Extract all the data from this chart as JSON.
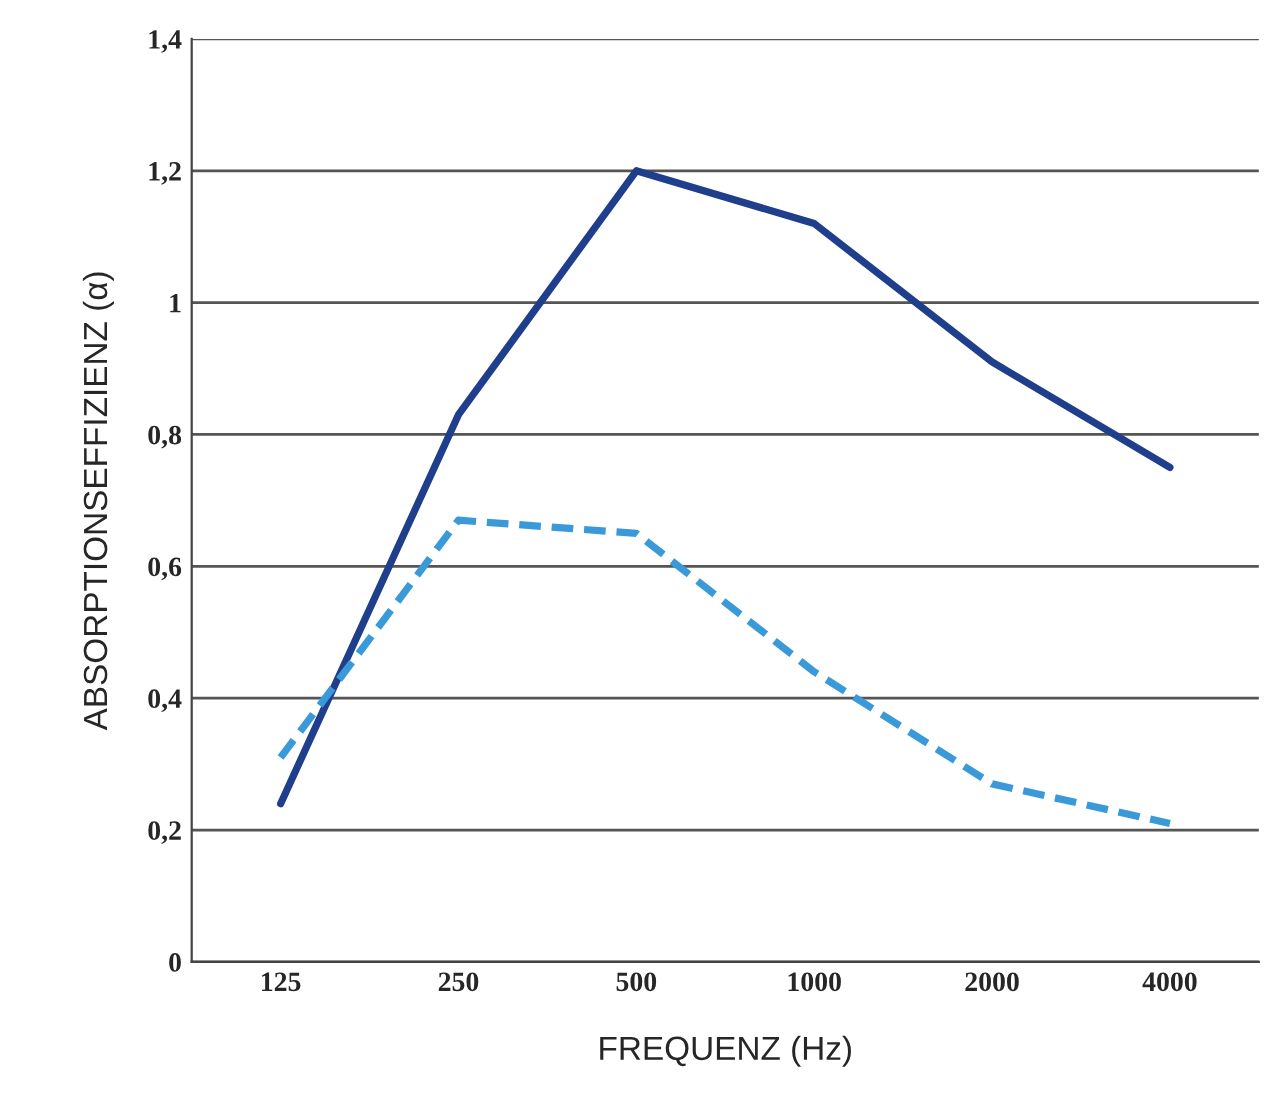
{
  "chart_data": {
    "type": "line",
    "xlabel": "FREQUENZ (Hz)",
    "ylabel": "ABSORPTIONSEFFIZIENZ (α)",
    "categories": [
      "125",
      "250",
      "500",
      "1000",
      "2000",
      "4000"
    ],
    "series": [
      {
        "color": "#1f3f8c",
        "values": [
          0.24,
          0.83,
          1.2,
          1.12,
          0.91,
          0.75
        ],
        "line_style": "solid"
      },
      {
        "color": "#3a9ad9",
        "values": [
          0.31,
          0.67,
          0.65,
          0.44,
          0.27,
          0.21
        ],
        "line_style": "dashed"
      }
    ],
    "ylim": [
      0,
      1.4
    ],
    "yticks": [
      0,
      {
        "value": 0.2,
        "label": "0,2"
      },
      {
        "value": 0.4,
        "label": "0,4"
      },
      {
        "value": 0.6,
        "label": "0,6"
      },
      {
        "value": 0.8,
        "label": "0,8"
      },
      1,
      {
        "value": 1.2,
        "label": "1,2"
      },
      {
        "value": 1.4,
        "label": "1,4"
      }
    ],
    "grid": "y",
    "legend": false,
    "marker": "none"
  }
}
